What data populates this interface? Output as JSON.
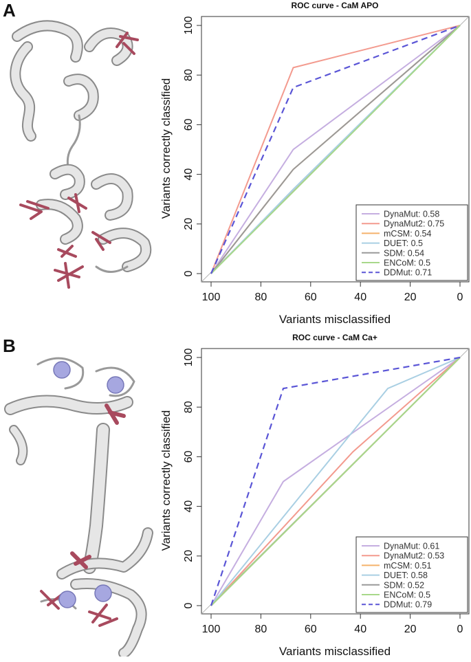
{
  "panels": [
    {
      "letter": "A",
      "protein_icon": "calmodulin-apo-ribbon"
    },
    {
      "letter": "B",
      "protein_icon": "calmodulin-calcium-bound-ribbon"
    }
  ],
  "chart_data": [
    {
      "type": "line",
      "title": "ROC curve - CaM APO",
      "xlabel": "Variants misclassified",
      "ylabel": "Variants correctly classified",
      "xlim": [
        100,
        0
      ],
      "ylim": [
        0,
        100
      ],
      "xticks": [
        100,
        80,
        60,
        40,
        20,
        0
      ],
      "yticks": [
        0,
        20,
        40,
        60,
        80,
        100
      ],
      "grid": false,
      "legend_position": "bottom-right",
      "series": [
        {
          "name": "DynaMut: 0.58",
          "color": "#c5aee0",
          "dash": "solid",
          "x": [
            100,
            67,
            0
          ],
          "y": [
            0,
            50,
            100
          ]
        },
        {
          "name": "DynaMut2: 0.75",
          "color": "#f39a8e",
          "dash": "solid",
          "x": [
            100,
            67,
            0
          ],
          "y": [
            0,
            83,
            100
          ]
        },
        {
          "name": "mCSM: 0.54",
          "color": "#f5b26b",
          "dash": "solid",
          "x": [
            100,
            67,
            0
          ],
          "y": [
            0,
            42,
            100
          ]
        },
        {
          "name": "DUET: 0.5",
          "color": "#a9cfe3",
          "dash": "solid",
          "x": [
            100,
            67,
            0
          ],
          "y": [
            0,
            34,
            100
          ]
        },
        {
          "name": "SDM: 0.54",
          "color": "#999999",
          "dash": "solid",
          "x": [
            100,
            67,
            0
          ],
          "y": [
            0,
            42,
            100
          ]
        },
        {
          "name": "ENCoM: 0.5",
          "color": "#a8d88a",
          "dash": "solid",
          "x": [
            100,
            67,
            0
          ],
          "y": [
            0,
            33,
            100
          ]
        },
        {
          "name": "DDMut: 0.71",
          "color": "#5a55d6",
          "dash": "dashed",
          "x": [
            100,
            67,
            0
          ],
          "y": [
            0,
            75,
            100
          ]
        }
      ]
    },
    {
      "type": "line",
      "title": "ROC curve - CaM Ca+",
      "xlabel": "Variants misclassified",
      "ylabel": "Variants correctly classified",
      "xlim": [
        100,
        0
      ],
      "ylim": [
        0,
        100
      ],
      "xticks": [
        100,
        80,
        60,
        40,
        20,
        0
      ],
      "yticks": [
        0,
        20,
        40,
        60,
        80,
        100
      ],
      "grid": false,
      "legend_position": "bottom-right",
      "series": [
        {
          "name": "DynaMut: 0.61",
          "color": "#c5aee0",
          "dash": "solid",
          "x": [
            100,
            71,
            0
          ],
          "y": [
            0,
            50,
            100
          ]
        },
        {
          "name": "DynaMut2: 0.53",
          "color": "#f39a8e",
          "dash": "solid",
          "x": [
            100,
            43,
            0
          ],
          "y": [
            0,
            62,
            100
          ]
        },
        {
          "name": "mCSM: 0.51",
          "color": "#f5b26b",
          "dash": "solid",
          "x": [
            100,
            0
          ],
          "y": [
            0,
            100
          ]
        },
        {
          "name": "DUET: 0.58",
          "color": "#a9cfe3",
          "dash": "solid",
          "x": [
            100,
            29,
            0
          ],
          "y": [
            0,
            87.5,
            100
          ]
        },
        {
          "name": "SDM: 0.52",
          "color": "#999999",
          "dash": "solid",
          "x": [
            100,
            0
          ],
          "y": [
            0,
            100
          ]
        },
        {
          "name": "ENCoM: 0.5",
          "color": "#a8d88a",
          "dash": "solid",
          "x": [
            100,
            0
          ],
          "y": [
            0,
            100
          ]
        },
        {
          "name": "DDMut: 0.79",
          "color": "#5a55d6",
          "dash": "dashed",
          "x": [
            100,
            71,
            0
          ],
          "y": [
            0,
            87.5,
            100
          ]
        }
      ]
    }
  ]
}
